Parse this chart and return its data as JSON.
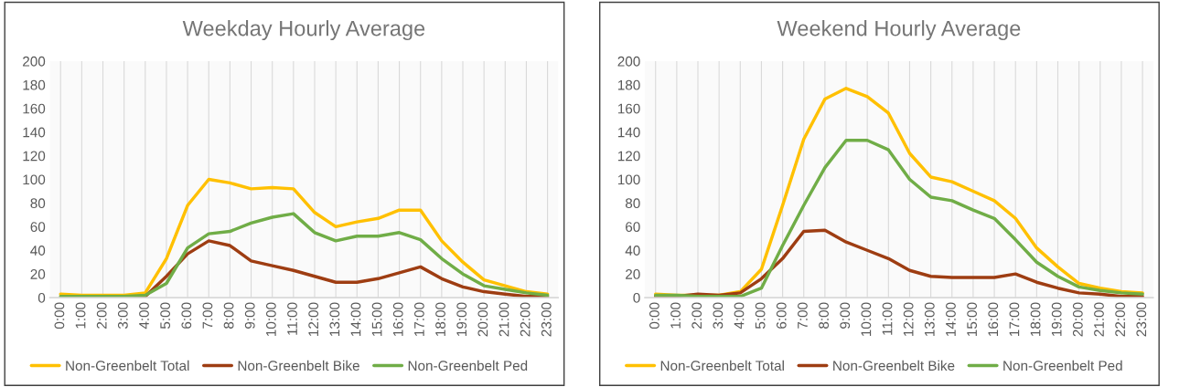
{
  "chart_data": [
    {
      "type": "line",
      "title": "Weekday Hourly Average",
      "categories": [
        "0:00",
        "1:00",
        "2:00",
        "3:00",
        "4:00",
        "5:00",
        "6:00",
        "7:00",
        "8:00",
        "9:00",
        "10:00",
        "11:00",
        "12:00",
        "13:00",
        "14:00",
        "15:00",
        "16:00",
        "17:00",
        "18:00",
        "19:00",
        "20:00",
        "21:00",
        "22:00",
        "23:00"
      ],
      "series": [
        {
          "name": "Non-Greenbelt Total",
          "color": "#ffc000",
          "values": [
            3,
            2,
            2,
            2,
            4,
            33,
            78,
            100,
            97,
            92,
            93,
            92,
            72,
            60,
            64,
            67,
            74,
            74,
            48,
            30,
            15,
            10,
            5,
            3
          ]
        },
        {
          "name": "Non-Greenbelt Bike",
          "color": "#9e3d12",
          "values": [
            null,
            null,
            null,
            1,
            1,
            18,
            37,
            48,
            44,
            31,
            27,
            23,
            18,
            13,
            13,
            16,
            21,
            26,
            16,
            9,
            5,
            3,
            1,
            1
          ]
        },
        {
          "name": "Non-Greenbelt Ped",
          "color": "#70ad47",
          "values": [
            1,
            1,
            1,
            1,
            2,
            12,
            42,
            54,
            56,
            63,
            68,
            71,
            55,
            48,
            52,
            52,
            55,
            49,
            33,
            20,
            10,
            7,
            4,
            2
          ]
        }
      ],
      "ylim": [
        0,
        200
      ],
      "yticks": [
        0,
        20,
        40,
        60,
        80,
        100,
        120,
        140,
        160,
        180,
        200
      ],
      "grid": "x",
      "legend": "bottom",
      "line_style": "solid",
      "marker": "none"
    },
    {
      "type": "line",
      "title": "Weekend Hourly Average",
      "categories": [
        "0:00",
        "1:00",
        "2:00",
        "3:00",
        "4:00",
        "5:00",
        "6:00",
        "7:00",
        "8:00",
        "9:00",
        "10:00",
        "11:00",
        "12:00",
        "13:00",
        "14:00",
        "15:00",
        "16:00",
        "17:00",
        "18:00",
        "19:00",
        "20:00",
        "21:00",
        "22:00",
        "23:00"
      ],
      "series": [
        {
          "name": "Non-Greenbelt Total",
          "color": "#ffc000",
          "values": [
            3,
            2,
            2,
            2,
            5,
            24,
            78,
            134,
            168,
            177,
            170,
            156,
            122,
            102,
            98,
            90,
            82,
            67,
            42,
            26,
            12,
            8,
            5,
            4
          ]
        },
        {
          "name": "Non-Greenbelt Bike",
          "color": "#9e3d12",
          "values": [
            1,
            1,
            3,
            2,
            4,
            16,
            33,
            56,
            57,
            47,
            40,
            33,
            23,
            18,
            17,
            17,
            17,
            20,
            13,
            8,
            4,
            3,
            1,
            1
          ]
        },
        {
          "name": "Non-Greenbelt Ped",
          "color": "#70ad47",
          "values": [
            2,
            2,
            1,
            1,
            1,
            8,
            44,
            78,
            110,
            133,
            133,
            125,
            100,
            85,
            82,
            74,
            67,
            49,
            30,
            18,
            9,
            6,
            4,
            3
          ]
        }
      ],
      "ylim": [
        0,
        200
      ],
      "yticks": [
        0,
        20,
        40,
        60,
        80,
        100,
        120,
        140,
        160,
        180,
        200
      ],
      "grid": "x",
      "legend": "bottom",
      "line_style": "solid",
      "marker": "none"
    }
  ]
}
